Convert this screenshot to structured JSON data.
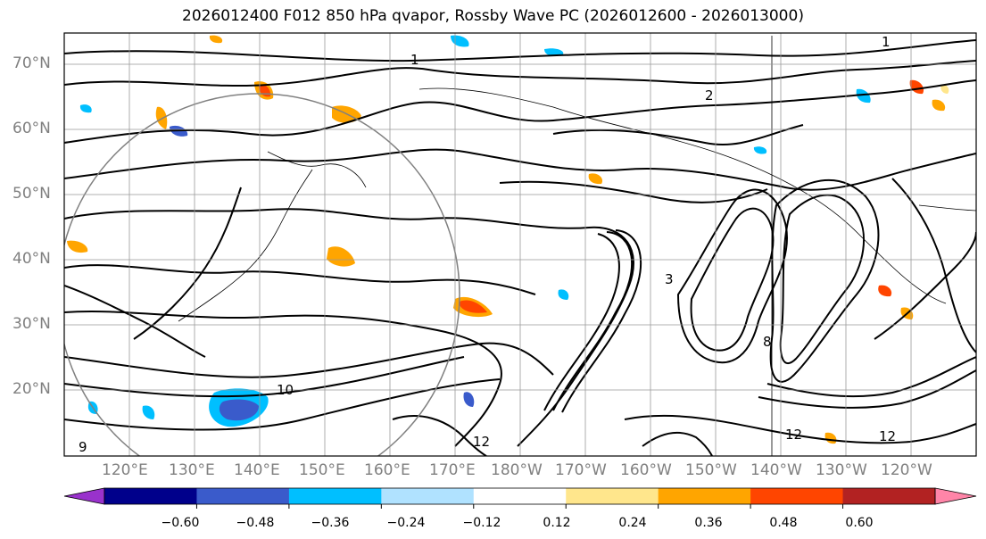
{
  "title": "2026012400 F012 850 hPa qvapor, Rossby Wave PC (2026012600 - 2026013000)",
  "lat_labels": [
    "70°N",
    "60°N",
    "50°N",
    "40°N",
    "30°N",
    "20°N"
  ],
  "lon_labels": [
    "120°E",
    "130°E",
    "140°E",
    "150°E",
    "160°E",
    "170°E",
    "180°W",
    "170°W",
    "160°W",
    "150°W",
    "140°W",
    "130°W",
    "120°W"
  ],
  "contour_labels": [
    "1",
    "1",
    "2",
    "3",
    "8",
    "9",
    "12",
    "12",
    "12",
    "10"
  ],
  "colorbar": {
    "colors": [
      "#9932CC",
      "#00008B",
      "#3A5BCB",
      "#00BFFF",
      "#B0E2FF",
      "#FFFFFF",
      "#FFE68C",
      "#FFA500",
      "#FF4500",
      "#B22222",
      "#FF85A8"
    ],
    "tick_labels": [
      "−0.60",
      "−0.48",
      "−0.36",
      "−0.24",
      "−0.12",
      "0.12",
      "0.24",
      "0.36",
      "0.48",
      "0.60"
    ]
  },
  "colors": {
    "frame": "#000000",
    "grid": "#999999",
    "axis_label": "#808080"
  }
}
